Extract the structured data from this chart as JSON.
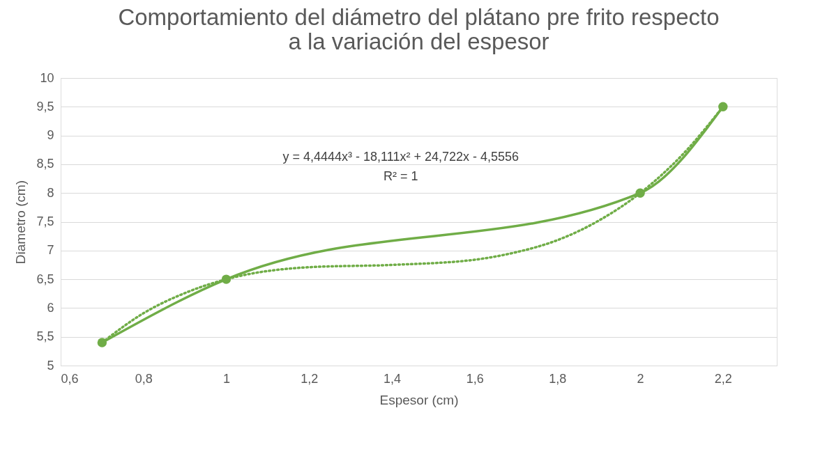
{
  "chart_data": {
    "type": "line",
    "title": [
      "Comportamiento del diámetro del plátano pre frito respecto",
      "a la variación del espesor"
    ],
    "xlabel": "Espesor (cm)",
    "ylabel": "Diametro (cm)",
    "series": [
      {
        "color": "#70ad47",
        "marker": "circle",
        "line_style": "solid",
        "x": [
          0.7,
          1,
          2,
          2.2
        ],
        "values": [
          5.4,
          6.5,
          8,
          9.5
        ]
      },
      {
        "color": "#70ad47",
        "marker": "none",
        "line_style": "dotted",
        "x": [
          0.7,
          0.8,
          0.9,
          1,
          1.2,
          1.4,
          1.6,
          1.7,
          1.8,
          1.9,
          2,
          2.1,
          2.2
        ],
        "values": [
          5.4,
          5.91,
          6.26,
          6.5,
          6.71,
          6.75,
          6.84,
          6.97,
          7.18,
          7.52,
          8,
          8.65,
          9.5
        ]
      }
    ],
    "annotations": [
      "y = 4,4444x³ - 18,111x² + 24,722x - 4,5556",
      "R² = 1"
    ],
    "xlim": [
      0.6,
      2.33
    ],
    "xticks": [
      {
        "value": 0.6,
        "label": "0,6"
      },
      {
        "value": 0.8,
        "label": "0,8"
      },
      1,
      {
        "value": 1.2,
        "label": "1,2"
      },
      {
        "value": 1.4,
        "label": "1,4"
      },
      {
        "value": 1.6,
        "label": "1,6"
      },
      {
        "value": 1.8,
        "label": "1,8"
      },
      2,
      {
        "value": 2.2,
        "label": "2,2"
      }
    ],
    "ylim": [
      5,
      10
    ],
    "yticks": [
      5,
      {
        "value": 5.5,
        "label": "5,5"
      },
      6,
      {
        "value": 6.5,
        "label": "6,5"
      },
      7,
      {
        "value": 7.5,
        "label": "7,5"
      },
      8,
      {
        "value": 8.5,
        "label": "8,5"
      },
      9,
      {
        "value": 9.5,
        "label": "9,5"
      },
      10
    ],
    "grid": "y",
    "legend": false
  }
}
